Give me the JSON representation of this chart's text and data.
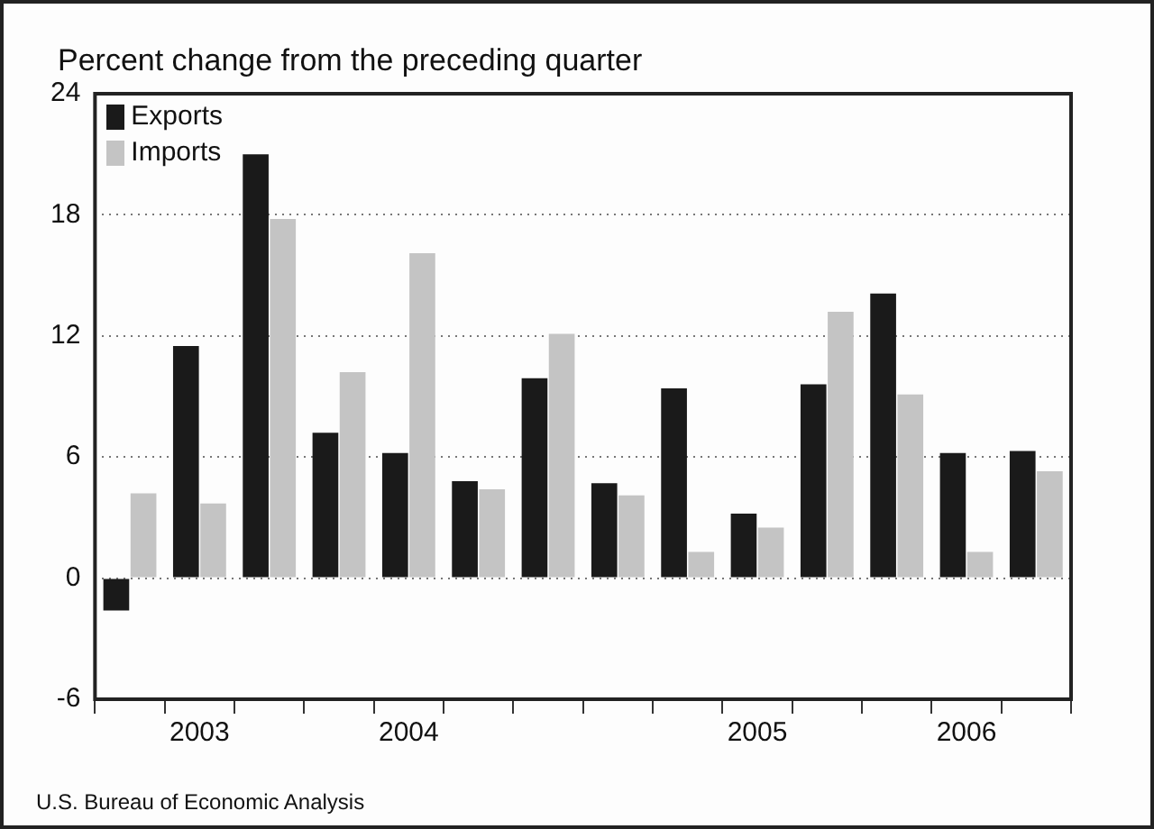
{
  "chart_data": {
    "type": "bar",
    "title": "Percent change from the preceding quarter",
    "categories": [
      null,
      "2003",
      null,
      null,
      "2004",
      null,
      null,
      null,
      null,
      "2005",
      null,
      null,
      "2006",
      null
    ],
    "series": [
      {
        "name": "Exports",
        "color": "#1a1a1a",
        "values": [
          -1.6,
          11.5,
          21.0,
          7.2,
          6.2,
          4.8,
          9.9,
          4.7,
          9.4,
          3.2,
          9.6,
          14.1,
          6.2,
          6.3
        ]
      },
      {
        "name": "Imports",
        "color": "#c4c4c4",
        "values": [
          4.2,
          3.7,
          17.8,
          10.2,
          16.1,
          4.4,
          12.1,
          4.1,
          1.3,
          2.5,
          13.2,
          9.1,
          1.3,
          5.3
        ]
      }
    ],
    "ylim": [
      -6,
      24
    ],
    "yticks": [
      -6,
      0,
      6,
      12,
      18,
      24
    ],
    "grid": "y",
    "legend": "top left",
    "annotations": [
      "U.S. Bureau of Economic Analysis"
    ]
  }
}
